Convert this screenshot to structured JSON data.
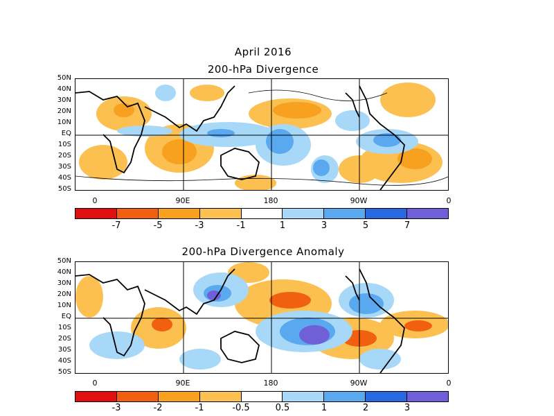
{
  "month_title": "April 2016",
  "panel1": {
    "title": "200-hPa Divergence",
    "lat_labels": [
      "50N",
      "40N",
      "30N",
      "20N",
      "10N",
      "EQ",
      "10S",
      "20S",
      "30S",
      "40S",
      "50S"
    ],
    "lon_labels": [
      "0",
      "90E",
      "180",
      "90W",
      "0"
    ],
    "colorbar": {
      "colors": [
        "#e01010",
        "#f06010",
        "#f8a020",
        "#fcc050",
        "#ffffff",
        "#a8d8f8",
        "#5aa8f0",
        "#2868e0",
        "#7060d8"
      ],
      "labels": [
        "-7",
        "-5",
        "-3",
        "-1",
        "1",
        "3",
        "5",
        "7"
      ]
    }
  },
  "panel2": {
    "title": "200-hPa Divergence Anomaly",
    "lat_labels": [
      "50N",
      "40N",
      "30N",
      "20N",
      "10N",
      "EQ",
      "10S",
      "20S",
      "30S",
      "40S",
      "50S"
    ],
    "lon_labels": [
      "0",
      "90E",
      "180",
      "90W",
      "0"
    ],
    "colorbar": {
      "colors": [
        "#e01010",
        "#f06010",
        "#f8a020",
        "#fcc050",
        "#ffffff",
        "#a8d8f8",
        "#5aa8f0",
        "#2868e0",
        "#7060d8"
      ],
      "labels": [
        "-3",
        "-2",
        "-1",
        "-0.5",
        "0.5",
        "1",
        "2",
        "3"
      ]
    }
  }
}
